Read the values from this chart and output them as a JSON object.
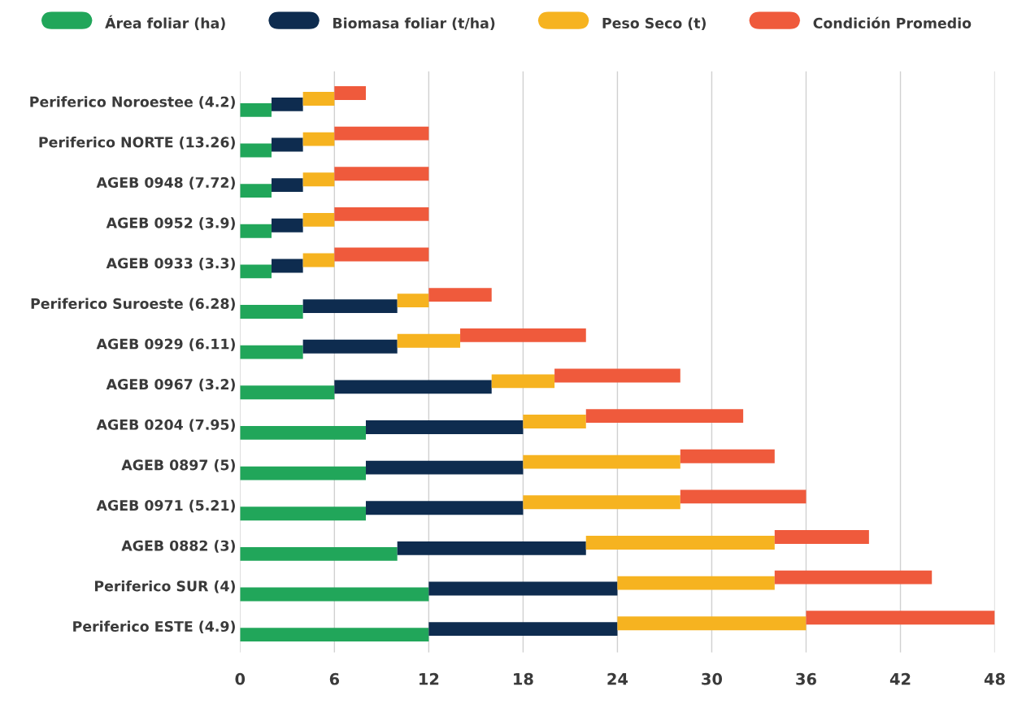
{
  "chart_data": {
    "type": "bar",
    "orientation": "horizontal",
    "stacked": true,
    "categories": [
      "Periferico Noroestee (4.2)",
      "Periferico NORTE (13.26)",
      "AGEB 0948 (7.72)",
      "AGEB 0952 (3.9)",
      "AGEB 0933 (3.3)",
      "Periferico Suroeste (6.28)",
      "AGEB 0929 (6.11)",
      "AGEB 0967 (3.2)",
      "AGEB 0204 (7.95)",
      "AGEB 0897 (5)",
      "AGEB 0971 (5.21)",
      "AGEB 0882 (3)",
      "Periferico SUR (4)",
      "Periferico ESTE (4.9)"
    ],
    "series": [
      {
        "name": "Área foliar (ha)",
        "color": "#21a65a",
        "values": [
          2,
          2,
          2,
          2,
          2,
          4,
          4,
          6,
          8,
          8,
          8,
          10,
          12,
          12
        ]
      },
      {
        "name": "Biomasa foliar (t/ha)",
        "color": "#0e2c4f",
        "values": [
          2,
          2,
          2,
          2,
          2,
          6,
          6,
          10,
          10,
          10,
          10,
          12,
          12,
          12
        ]
      },
      {
        "name": "Peso Seco (t)",
        "color": "#f6b320",
        "values": [
          2,
          2,
          2,
          2,
          2,
          2,
          4,
          4,
          4,
          10,
          10,
          12,
          10,
          12
        ]
      },
      {
        "name": "Condición Promedio",
        "color": "#ef5a3c",
        "values": [
          2,
          6,
          6,
          6,
          6,
          4,
          8,
          8,
          10,
          6,
          8,
          6,
          10,
          12
        ]
      }
    ],
    "xlim": [
      0,
      48
    ],
    "xticks": [
      0,
      6,
      12,
      18,
      24,
      30,
      36,
      42,
      48
    ],
    "grid": "x",
    "legend": "top"
  }
}
